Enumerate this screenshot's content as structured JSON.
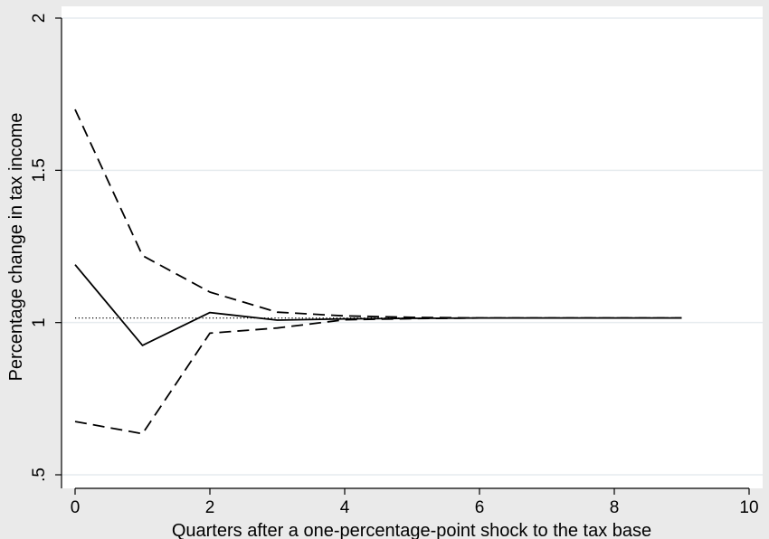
{
  "chart_data": {
    "type": "line",
    "xlabel": "Quarters after a one-percentage-point shock to the tax base",
    "ylabel": "Percentage change in tax income",
    "xlim": [
      0,
      10
    ],
    "ylim": [
      0.5,
      2
    ],
    "x_ticks": [
      0,
      2,
      4,
      6,
      8,
      10
    ],
    "x_tick_labels": [
      "0",
      "2",
      "4",
      "6",
      "8",
      "10"
    ],
    "y_ticks": [
      0.5,
      1,
      1.5,
      2
    ],
    "y_tick_labels": [
      ".5",
      "1",
      "1.5",
      "2"
    ],
    "grid": true,
    "reference_line": {
      "y": 1.015,
      "style": "dotted"
    },
    "x": [
      0,
      1,
      2,
      3,
      4,
      5,
      6,
      7,
      8,
      9
    ],
    "series": [
      {
        "style": "solid",
        "values": [
          1.19,
          0.925,
          1.033,
          1.008,
          1.012,
          1.014,
          1.015,
          1.015,
          1.015,
          1.015
        ]
      },
      {
        "style": "dashed",
        "values": [
          1.7,
          1.22,
          1.1,
          1.034,
          1.022,
          1.017,
          1.015,
          1.015,
          1.015,
          1.015
        ]
      },
      {
        "style": "dashed",
        "values": [
          0.675,
          0.635,
          0.965,
          0.982,
          1.009,
          1.013,
          1.015,
          1.015,
          1.015,
          1.015
        ]
      }
    ]
  }
}
